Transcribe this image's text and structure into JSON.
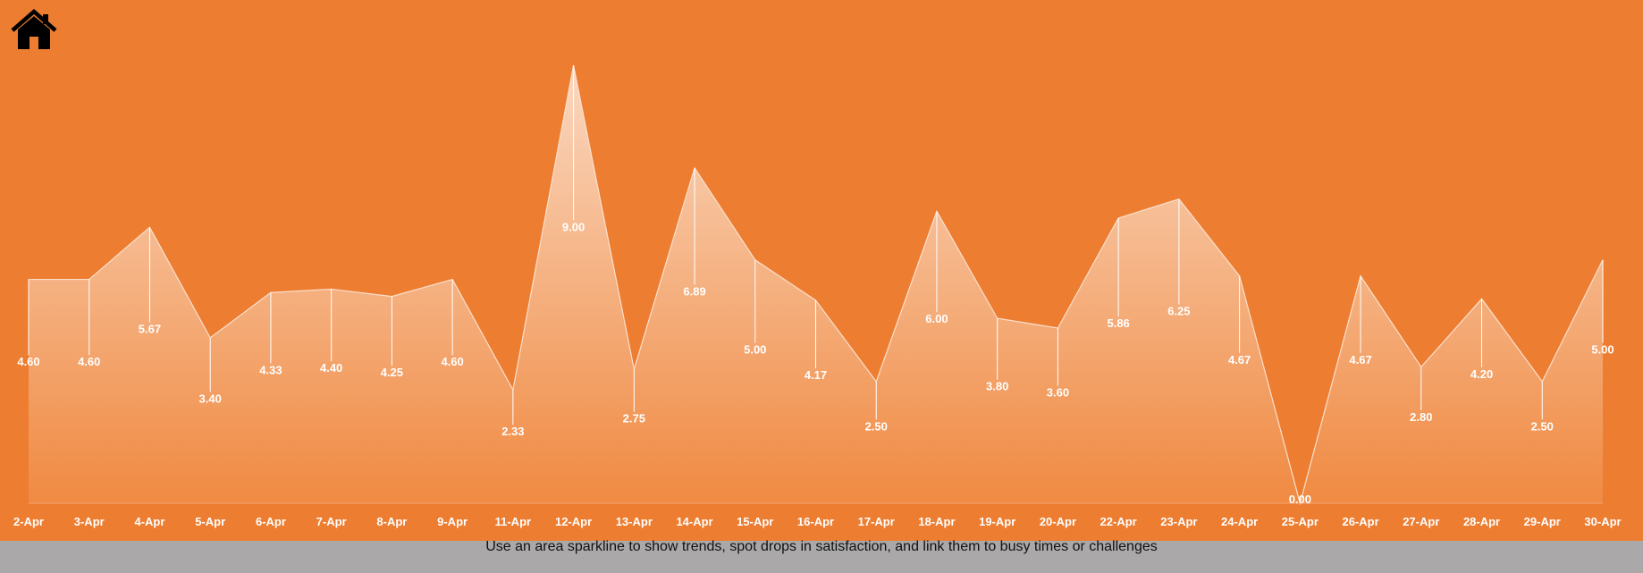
{
  "caption": "Use an area sparkline to show trends, spot drops in satisfaction, and link them to busy times or challenges",
  "home_icon": "home-icon",
  "colors": {
    "background": "#ed7d31",
    "footer": "#aaa8a8",
    "area_top": "#f9d4bb",
    "area_bottom": "#ef853b",
    "text": "#ffffff"
  },
  "chart_data": {
    "type": "area",
    "categories": [
      "2-Apr",
      "3-Apr",
      "4-Apr",
      "5-Apr",
      "6-Apr",
      "7-Apr",
      "8-Apr",
      "9-Apr",
      "11-Apr",
      "12-Apr",
      "13-Apr",
      "14-Apr",
      "15-Apr",
      "16-Apr",
      "17-Apr",
      "18-Apr",
      "19-Apr",
      "20-Apr",
      "22-Apr",
      "23-Apr",
      "24-Apr",
      "25-Apr",
      "26-Apr",
      "27-Apr",
      "28-Apr",
      "29-Apr",
      "30-Apr"
    ],
    "values": [
      4.6,
      4.6,
      5.67,
      3.4,
      4.33,
      4.4,
      4.25,
      4.6,
      2.33,
      9.0,
      2.75,
      6.89,
      5.0,
      4.17,
      2.5,
      6.0,
      3.8,
      3.6,
      5.86,
      6.25,
      4.67,
      0.0,
      4.67,
      2.8,
      4.2,
      2.5,
      5.0
    ],
    "value_labels": [
      "4.60",
      "4.60",
      "5.67",
      "3.40",
      "4.33",
      "4.40",
      "4.25",
      "4.60",
      "2.33",
      "9.00",
      "2.75",
      "6.89",
      "5.00",
      "4.17",
      "2.50",
      "6.00",
      "3.80",
      "3.60",
      "5.86",
      "6.25",
      "4.67",
      "0.00",
      "4.67",
      "2.80",
      "4.20",
      "2.50",
      "5.00"
    ],
    "ylim": [
      0,
      9
    ],
    "grid": false,
    "legend": "none",
    "title": "",
    "xlabel": "",
    "ylabel": ""
  }
}
